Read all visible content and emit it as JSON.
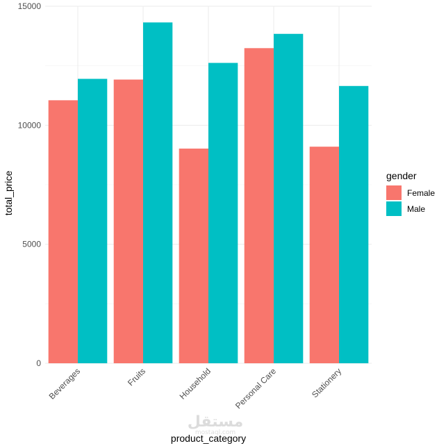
{
  "chart_data": {
    "type": "bar",
    "categories": [
      "Beverages",
      "Fruits",
      "Household",
      "Personal Care",
      "Stationery"
    ],
    "series": [
      {
        "name": "Female",
        "color": "#F8766D",
        "values": [
          11050,
          11920,
          9020,
          13240,
          9100
        ]
      },
      {
        "name": "Male",
        "color": "#00BFC4",
        "values": [
          11950,
          14320,
          12620,
          13840,
          11650
        ]
      }
    ],
    "xlabel": "product_category",
    "ylabel": "total_price",
    "ylim": [
      0,
      15000
    ],
    "yticks": [
      0,
      5000,
      10000,
      15000
    ],
    "grid": true,
    "legend": {
      "title": "gender",
      "placement": "right"
    }
  },
  "watermark": {
    "text": "مستقل",
    "subtext": "mostaql.com"
  }
}
